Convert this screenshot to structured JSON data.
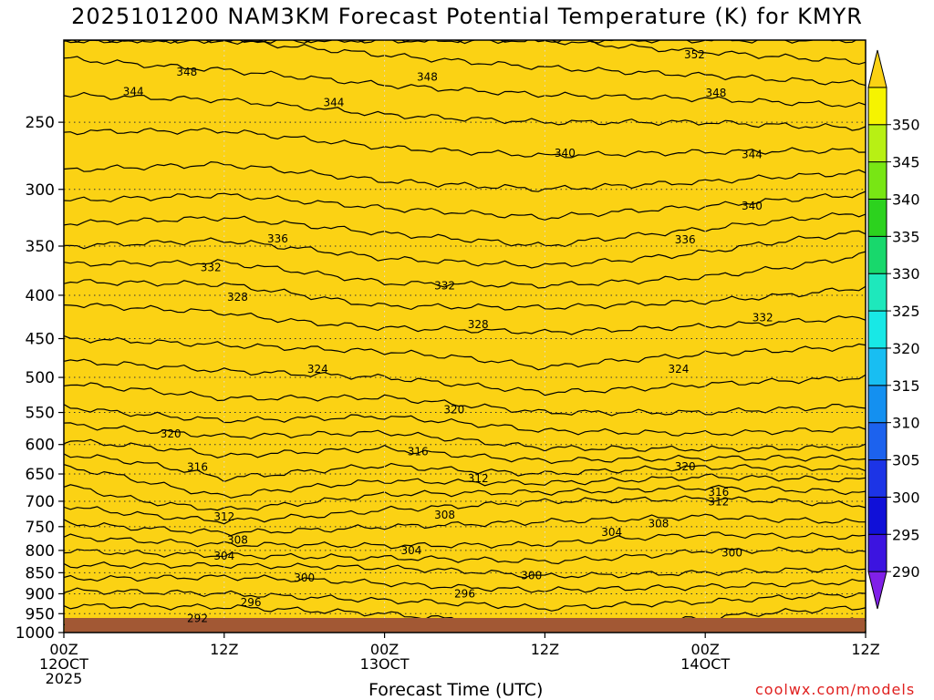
{
  "chart_data": {
    "type": "contour",
    "title": "2025101200 NAM3KM Forecast Potential Temperature (K) for KMYR",
    "xlabel": "Forecast Time (UTC)",
    "ylabel": "",
    "credit": "coolwx.com/models",
    "units": "K",
    "x_range_hours": [
      0,
      60
    ],
    "y_range_hpa": [
      1000,
      200
    ],
    "y_scale": "log-pressure",
    "y_ticks": [
      250,
      300,
      350,
      400,
      450,
      500,
      550,
      600,
      650,
      700,
      750,
      800,
      850,
      900,
      950,
      1000
    ],
    "x_ticks": [
      {
        "hour": 0,
        "lines": [
          "00Z",
          "12OCT",
          "2025"
        ]
      },
      {
        "hour": 12,
        "lines": [
          "12Z"
        ]
      },
      {
        "hour": 24,
        "lines": [
          "00Z",
          "13OCT"
        ]
      },
      {
        "hour": 36,
        "lines": [
          "12Z"
        ]
      },
      {
        "hour": 48,
        "lines": [
          "00Z",
          "14OCT"
        ]
      },
      {
        "hour": 60,
        "lines": [
          "12Z"
        ]
      }
    ],
    "colorbar": {
      "levels": [
        290,
        295,
        300,
        305,
        310,
        315,
        320,
        325,
        330,
        335,
        340,
        345,
        350
      ],
      "colors": [
        "#8020e8",
        "#3c14e0",
        "#1010d8",
        "#1c34e6",
        "#1c62ee",
        "#1490f0",
        "#18bef2",
        "#18e8e6",
        "#1ee8bc",
        "#18d86c",
        "#2cd21e",
        "#78e614",
        "#b8f014",
        "#f6f400",
        "#fbd214"
      ]
    },
    "contour_interval": 2,
    "terrain_color": "#a25834",
    "profile_hours": [
      0,
      12,
      24,
      36,
      48,
      60
    ],
    "theta_profiles": [
      {
        "p": 1000,
        "theta": [
          291.5,
          291.5,
          292,
          293,
          292.5,
          290
        ]
      },
      {
        "p": 950,
        "theta": [
          293,
          293,
          294,
          295.5,
          294.5,
          293
        ]
      },
      {
        "p": 900,
        "theta": [
          295.5,
          296,
          297,
          297.5,
          297,
          296
        ]
      },
      {
        "p": 850,
        "theta": [
          299,
          298.5,
          299,
          300.5,
          300,
          299.5
        ]
      },
      {
        "p": 800,
        "theta": [
          302,
          303,
          303.5,
          303.5,
          302,
          302
        ]
      },
      {
        "p": 750,
        "theta": [
          305.5,
          307,
          306,
          305.5,
          305,
          305.5
        ]
      },
      {
        "p": 700,
        "theta": [
          308.5,
          311.5,
          309,
          308,
          307.5,
          308.5
        ]
      },
      {
        "p": 650,
        "theta": [
          311,
          314.5,
          313,
          314,
          312.5,
          313
        ]
      },
      {
        "p": 600,
        "theta": [
          315.5,
          317,
          316.5,
          318.5,
          319,
          318.5
        ]
      },
      {
        "p": 550,
        "theta": [
          319.5,
          321,
          320.5,
          322,
          322,
          321.5
        ]
      },
      {
        "p": 500,
        "theta": [
          322.5,
          323.5,
          324,
          325.5,
          324.5,
          324
        ]
      },
      {
        "p": 450,
        "theta": [
          326,
          326.5,
          327,
          327.5,
          327,
          326.5
        ]
      },
      {
        "p": 400,
        "theta": [
          328.5,
          329,
          331,
          331,
          330.5,
          329.5
        ]
      },
      {
        "p": 350,
        "theta": [
          334,
          333.5,
          335,
          336,
          334.5,
          332.5
        ]
      },
      {
        "p": 300,
        "theta": [
          339,
          338.5,
          339.5,
          340,
          339.5,
          338.5
        ]
      },
      {
        "p": 250,
        "theta": [
          342.5,
          342.5,
          343.5,
          344,
          344,
          344.5
        ]
      },
      {
        "p": 200,
        "theta": [
          347,
          348,
          349,
          350,
          351,
          352
        ]
      }
    ],
    "contour_labels": [
      {
        "value": 352,
        "hour": 47.2,
        "p": 208
      },
      {
        "value": 348,
        "hour": 9.2,
        "p": 218
      },
      {
        "value": 348,
        "hour": 27.2,
        "p": 221
      },
      {
        "value": 348,
        "hour": 48.8,
        "p": 231
      },
      {
        "value": 344,
        "hour": 5.2,
        "p": 230
      },
      {
        "value": 344,
        "hour": 20.2,
        "p": 237
      },
      {
        "value": 344,
        "hour": 51.5,
        "p": 273
      },
      {
        "value": 340,
        "hour": 37.5,
        "p": 272
      },
      {
        "value": 340,
        "hour": 51.5,
        "p": 314
      },
      {
        "value": 336,
        "hour": 16,
        "p": 343
      },
      {
        "value": 336,
        "hour": 46.5,
        "p": 344
      },
      {
        "value": 332,
        "hour": 11,
        "p": 371
      },
      {
        "value": 332,
        "hour": 28.5,
        "p": 390
      },
      {
        "value": 332,
        "hour": 52.3,
        "p": 425
      },
      {
        "value": 328,
        "hour": 13,
        "p": 402
      },
      {
        "value": 328,
        "hour": 31,
        "p": 433
      },
      {
        "value": 324,
        "hour": 19,
        "p": 489
      },
      {
        "value": 324,
        "hour": 46,
        "p": 489
      },
      {
        "value": 320,
        "hour": 29.2,
        "p": 546
      },
      {
        "value": 320,
        "hour": 8,
        "p": 583
      },
      {
        "value": 320,
        "hour": 46.5,
        "p": 637
      },
      {
        "value": 316,
        "hour": 10,
        "p": 638
      },
      {
        "value": 316,
        "hour": 26.5,
        "p": 612
      },
      {
        "value": 316,
        "hour": 49,
        "p": 683
      },
      {
        "value": 312,
        "hour": 31,
        "p": 658
      },
      {
        "value": 312,
        "hour": 49,
        "p": 701
      },
      {
        "value": 312,
        "hour": 12,
        "p": 730
      },
      {
        "value": 308,
        "hour": 28.5,
        "p": 727
      },
      {
        "value": 308,
        "hour": 44.5,
        "p": 744
      },
      {
        "value": 308,
        "hour": 13,
        "p": 778
      },
      {
        "value": 304,
        "hour": 41,
        "p": 762
      },
      {
        "value": 304,
        "hour": 12,
        "p": 812
      },
      {
        "value": 304,
        "hour": 26,
        "p": 800
      },
      {
        "value": 300,
        "hour": 50,
        "p": 805
      },
      {
        "value": 300,
        "hour": 18,
        "p": 862
      },
      {
        "value": 300,
        "hour": 35,
        "p": 857
      },
      {
        "value": 296,
        "hour": 30,
        "p": 900
      },
      {
        "value": 296,
        "hour": 14,
        "p": 922
      },
      {
        "value": 292,
        "hour": 10,
        "p": 962
      }
    ]
  }
}
